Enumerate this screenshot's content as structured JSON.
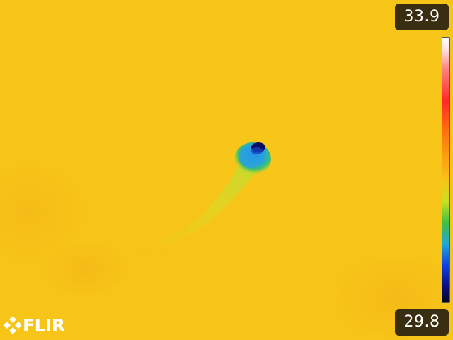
{
  "camera": {
    "temp_max": "33.9",
    "temp_min": "29.8",
    "brand": "FLIR",
    "palette": "iron-rainbow",
    "background_color": "#f7c418"
  },
  "logo": {
    "icon": "flir-diamond-icon"
  }
}
